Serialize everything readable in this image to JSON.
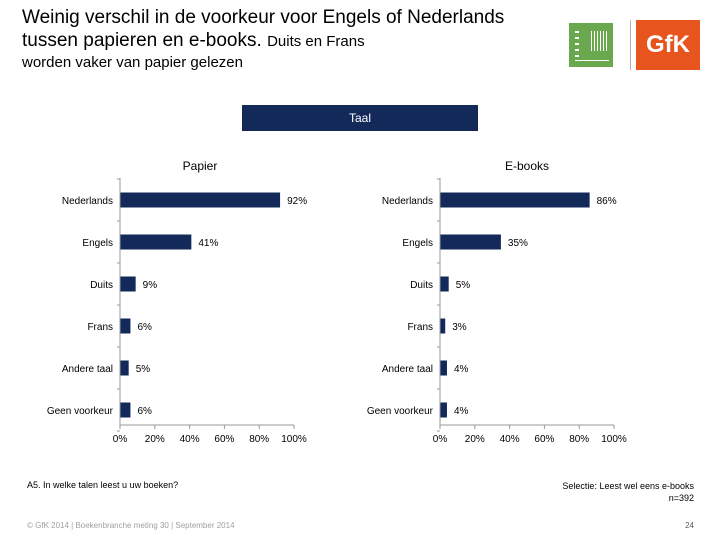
{
  "header": {
    "title_main": "Weinig verschil in de voorkeur voor Engels of Nederlands tussen papieren en e-books.",
    "title_small": "Duits en Frans",
    "subtitle": "worden vaker van papier gelezen"
  },
  "logos": {
    "gfk": "GfK"
  },
  "banner": {
    "label": "Taal"
  },
  "chart_data": [
    {
      "type": "bar",
      "orientation": "horizontal",
      "title": "Papier",
      "categories": [
        "Nederlands",
        "Engels",
        "Duits",
        "Frans",
        "Andere taal",
        "Geen voorkeur"
      ],
      "values": [
        92,
        41,
        9,
        6,
        5,
        6
      ],
      "value_labels": [
        "92%",
        "41%",
        "9%",
        "6%",
        "5%",
        "6%"
      ],
      "xlim": [
        0,
        100
      ],
      "xticks": [
        "0%",
        "20%",
        "40%",
        "60%",
        "80%",
        "100%"
      ],
      "bar_color": "#13295a"
    },
    {
      "type": "bar",
      "orientation": "horizontal",
      "title": "E-books",
      "categories": [
        "Nederlands",
        "Engels",
        "Duits",
        "Frans",
        "Andere taal",
        "Geen voorkeur"
      ],
      "values": [
        86,
        35,
        5,
        3,
        4,
        4
      ],
      "value_labels": [
        "86%",
        "35%",
        "5%",
        "3%",
        "4%",
        "4%"
      ],
      "xlim": [
        0,
        100
      ],
      "xticks": [
        "0%",
        "20%",
        "40%",
        "60%",
        "80%",
        "100%"
      ],
      "bar_color": "#13295a"
    }
  ],
  "footer": {
    "question": "A5. In welke talen leest u uw boeken?",
    "selection": "Selectie: Leest wel eens e-books",
    "sample": "n=392",
    "copyright": "© GfK 2014 | Boekenbranche meting 30 | September 2014",
    "page": "24"
  }
}
